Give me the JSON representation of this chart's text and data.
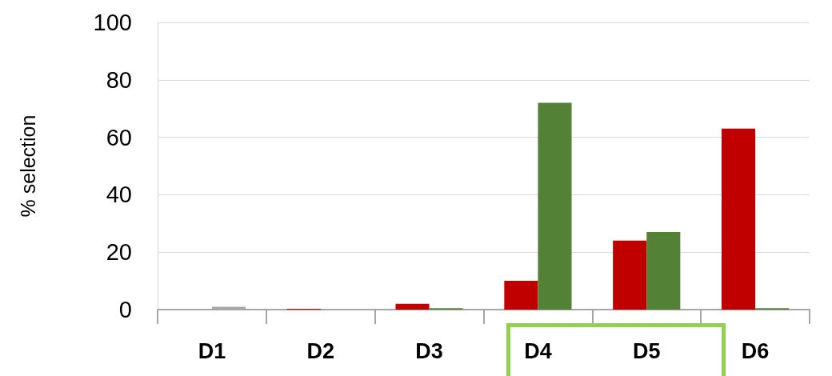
{
  "chart_data": {
    "type": "bar",
    "ylabel": "% selection",
    "categories": [
      "D1",
      "D2",
      "D3",
      "D4",
      "D5",
      "D6"
    ],
    "series": [
      {
        "color": "#c00000",
        "values": [
          0,
          0.3,
          2,
          10,
          24,
          63
        ]
      },
      {
        "color": "#538135",
        "colors": [
          "#a6a6a6",
          "#538135",
          "#538135",
          "#538135",
          "#538135",
          "#538135"
        ],
        "values": [
          1,
          0,
          0.5,
          72,
          27,
          0.5
        ]
      }
    ],
    "ylim": [
      0,
      100
    ],
    "yticks": [
      0,
      20,
      40,
      60,
      80,
      100
    ],
    "grid": "y"
  }
}
